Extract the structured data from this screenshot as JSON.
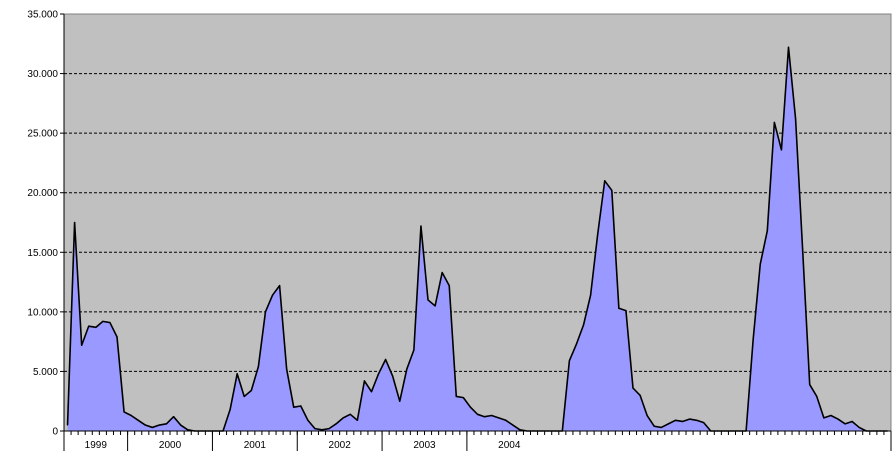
{
  "chart_data": {
    "type": "area",
    "title": "",
    "xlabel": "",
    "ylabel": "",
    "ylim": [
      0,
      35000
    ],
    "y_ticks": [
      0,
      5000,
      10000,
      15000,
      20000,
      25000,
      30000,
      35000
    ],
    "y_tick_labels": [
      "0",
      "5.000",
      "10.000",
      "15.000",
      "20.000",
      "25.000",
      "30.000",
      "35.000"
    ],
    "grid": "horizontal dashed",
    "legend": "none",
    "year_labels": [
      "1999",
      "2000",
      "2001",
      "2002",
      "2003",
      "2004"
    ],
    "months_per_year": [
      9,
      12,
      12,
      12,
      12,
      12
    ],
    "colors": {
      "plot_background": "#c0c0c0",
      "area_fill": "#9999ff",
      "area_line": "#000000",
      "grid": "#000000"
    },
    "series": [
      {
        "values": [
          500,
          17500,
          7200,
          8800,
          8700,
          9200,
          9100,
          7900,
          1600,
          1300,
          900,
          500,
          300,
          500,
          600,
          1200,
          500,
          100,
          0,
          0,
          0,
          0,
          0,
          1800,
          4800,
          2900,
          3400,
          5400,
          10000,
          11400,
          12200,
          5200,
          2000,
          2100,
          900,
          200,
          100,
          200,
          600,
          1100,
          1400,
          900,
          4200,
          3300,
          4800,
          6000,
          4600,
          2500,
          5200,
          6800,
          17200,
          11000,
          10500,
          13300,
          12200,
          2900,
          2800,
          2000,
          1400,
          1200,
          1300,
          1100,
          900,
          500,
          100,
          0,
          0,
          0,
          0,
          0,
          0,
          5900,
          7300,
          8900,
          11400,
          16500,
          21000,
          20200,
          10300,
          10100,
          3600,
          3000,
          1300,
          400,
          300,
          600,
          900,
          800,
          1000,
          900,
          700,
          0,
          0,
          0,
          0,
          0,
          0,
          7700,
          14000,
          16800,
          25900,
          23600,
          32200,
          26200,
          15200,
          3900,
          2900,
          1100,
          1300,
          1000,
          600,
          800,
          300,
          0,
          0,
          0,
          0
        ]
      }
    ]
  }
}
